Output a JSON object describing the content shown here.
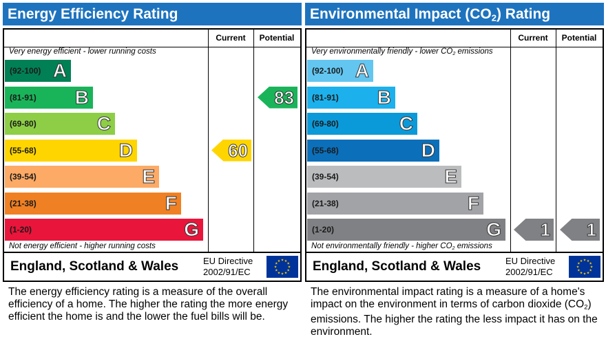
{
  "energy": {
    "title": "Energy Efficiency Rating",
    "col_current": "Current",
    "col_potential": "Potential",
    "top_note": "Very energy efficient - lower running costs",
    "bottom_note": "Not energy efficient - higher running costs",
    "bands": [
      {
        "range": "(92-100)",
        "letter": "A",
        "color": "#008054"
      },
      {
        "range": "(81-91)",
        "letter": "B",
        "color": "#19b459"
      },
      {
        "range": "(69-80)",
        "letter": "C",
        "color": "#8dce46"
      },
      {
        "range": "(55-68)",
        "letter": "D",
        "color": "#ffd500"
      },
      {
        "range": "(39-54)",
        "letter": "E",
        "color": "#fcaa65"
      },
      {
        "range": "(21-38)",
        "letter": "F",
        "color": "#ef8023"
      },
      {
        "range": "(1-20)",
        "letter": "G",
        "color": "#e9153b"
      }
    ],
    "current_value": "60",
    "current_band": "D",
    "current_color": "#ffd500",
    "potential_value": "83",
    "potential_band": "B",
    "potential_color": "#19b459",
    "region": "England, Scotland & Wales",
    "directive_line1": "EU Directive",
    "directive_line2": "2002/91/EC",
    "description": "The energy efficiency rating is a measure of the overall efficiency of a home. The higher the rating the more energy efficient the home is and the lower the fuel bills will be."
  },
  "environment": {
    "title_main": "Environmental Impact (CO",
    "title_sub": "2",
    "title_tail": ") Rating",
    "col_current": "Current",
    "col_potential": "Potential",
    "top_note_main": "Very environmentally friendly - lower CO",
    "top_note_sub": "2",
    "top_note_tail": " emissions",
    "bottom_note_main": "Not environmentally friendly - higher CO",
    "bottom_note_sub": "2",
    "bottom_note_tail": " emissions",
    "bands": [
      {
        "range": "(92-100)",
        "letter": "A",
        "color": "#63c6f0"
      },
      {
        "range": "(81-91)",
        "letter": "B",
        "color": "#1cb1ec"
      },
      {
        "range": "(69-80)",
        "letter": "C",
        "color": "#0b9ad9"
      },
      {
        "range": "(55-68)",
        "letter": "D",
        "color": "#0b6fba"
      },
      {
        "range": "(39-54)",
        "letter": "E",
        "color": "#bbbcbe"
      },
      {
        "range": "(21-38)",
        "letter": "F",
        "color": "#a2a3a6"
      },
      {
        "range": "(1-20)",
        "letter": "G",
        "color": "#808184"
      }
    ],
    "current_value": "1",
    "current_band": "G",
    "current_color": "#808184",
    "potential_value": "1",
    "potential_band": "G",
    "potential_color": "#808184",
    "region": "England, Scotland & Wales",
    "directive_line1": "EU Directive",
    "directive_line2": "2002/91/EC",
    "desc_line1": "The environmental impact rating is a measure of a home's impact on the environment in terms of carbon dioxide (CO",
    "desc_sub": "2",
    "desc_line2": ") emissions. The higher the rating the less impact it has on the environment."
  },
  "eu_flag": {
    "background": "#003399",
    "stars": "#ffcc00",
    "icon": "eu-flag-icon"
  }
}
